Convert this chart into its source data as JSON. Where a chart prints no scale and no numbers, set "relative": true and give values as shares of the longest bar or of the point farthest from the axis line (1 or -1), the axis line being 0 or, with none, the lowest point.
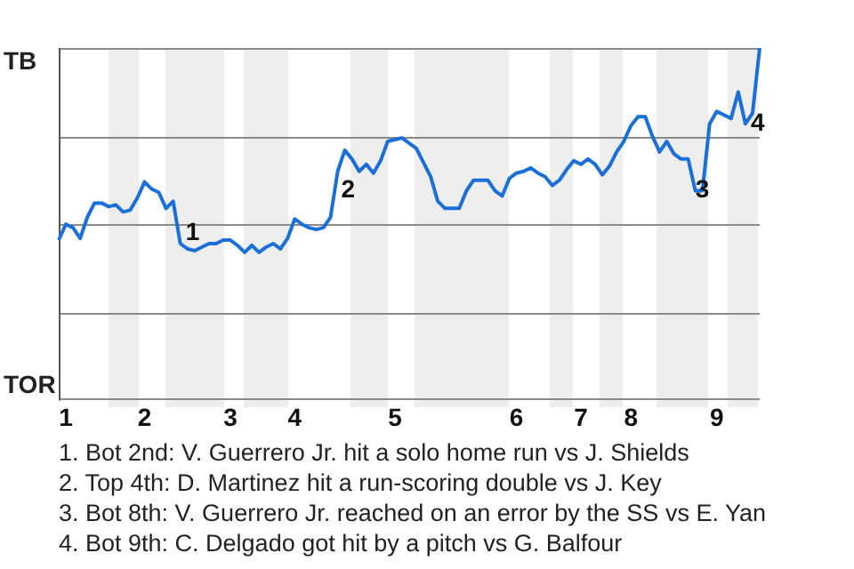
{
  "chart_data": {
    "type": "line",
    "relative": true,
    "categories": [
      null,
      "1",
      null,
      null,
      null,
      null,
      null,
      null,
      null,
      null,
      null,
      null,
      "2",
      null,
      null,
      null,
      null,
      null,
      null,
      null,
      null,
      null,
      null,
      null,
      "3",
      null,
      null,
      null,
      null,
      null,
      null,
      null,
      null,
      "4",
      null,
      null,
      null,
      null,
      null,
      null,
      null,
      null,
      null,
      null,
      null,
      null,
      null,
      "5",
      null,
      null,
      null,
      null,
      null,
      null,
      null,
      null,
      null,
      null,
      null,
      null,
      null,
      null,
      null,
      null,
      "6",
      null,
      null,
      null,
      null,
      null,
      null,
      null,
      null,
      "7",
      null,
      null,
      null,
      null,
      null,
      null,
      "8",
      null,
      null,
      null,
      null,
      null,
      null,
      null,
      null,
      null,
      null,
      null,
      "9",
      null,
      null,
      null,
      null,
      null,
      null
    ],
    "series": [
      {
        "color": "#1a6fd8",
        "values": [
          -0.09,
          0,
          -0.02,
          -0.08,
          0.04,
          0.12,
          0.12,
          0.1,
          0.11,
          0.07,
          0.08,
          0.15,
          0.24,
          0.2,
          0.18,
          0.09,
          0.13,
          -0.11,
          -0.14,
          -0.15,
          -0.13,
          -0.11,
          -0.11,
          -0.09,
          -0.09,
          -0.12,
          -0.16,
          -0.12,
          -0.16,
          -0.13,
          -0.11,
          -0.14,
          -0.08,
          0.03,
          0,
          -0.02,
          -0.03,
          -0.02,
          0.04,
          0.3,
          0.42,
          0.37,
          0.3,
          0.34,
          0.29,
          0.36,
          0.47,
          0.48,
          0.49,
          0.46,
          0.43,
          0.35,
          0.27,
          0.13,
          0.09,
          0.09,
          0.09,
          0.19,
          0.25,
          0.25,
          0.25,
          0.19,
          0.16,
          0.26,
          0.29,
          0.3,
          0.32,
          0.29,
          0.27,
          0.22,
          0.25,
          0.31,
          0.36,
          0.34,
          0.37,
          0.34,
          0.28,
          0.33,
          0.41,
          0.47,
          0.56,
          0.61,
          0.61,
          0.5,
          0.41,
          0.47,
          0.4,
          0.37,
          0.37,
          0.19,
          0.19,
          0.57,
          0.64,
          0.62,
          0.6,
          0.75,
          0.57,
          0.63,
          1
        ]
      }
    ],
    "marker": "none",
    "ref_lines": [
      {
        "axis": "y",
        "value": 1,
        "label": "TB",
        "color": "#8a8a8a"
      },
      {
        "axis": "y",
        "value": 0.5,
        "label": null,
        "color": "#8a8a8a"
      },
      {
        "axis": "y",
        "value": 0,
        "label": null,
        "color": "#8a8a8a"
      },
      {
        "axis": "y",
        "value": -0.5,
        "label": null,
        "color": "#8a8a8a"
      },
      {
        "axis": "y",
        "value": -1,
        "label": "TOR",
        "color": "#8a8a8a"
      }
    ],
    "annotations": [
      {
        "text": "1",
        "y": -0.11
      },
      {
        "text": "2",
        "y": 0.3
      },
      {
        "text": "3",
        "y": 0.19
      },
      {
        "text": "4",
        "y": 0.57
      },
      "1. Bot 2nd: V. Guerrero Jr. hit a solo home run vs J. Shields",
      "2. Top 4th: D. Martinez hit a run-scoring double vs J. Key",
      "3. Bot 8th: V. Guerrero Jr. reached on an error by the SS vs E. Yan",
      "4. Bot 9th: C. Delgado got hit by a pitch vs G. Balfour"
    ]
  }
}
